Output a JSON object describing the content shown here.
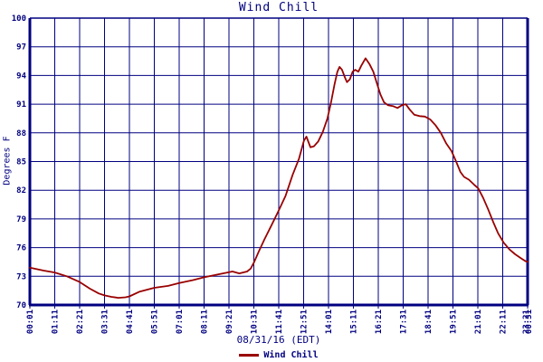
{
  "title": "Wind Chill",
  "y_axis_label": "Degrees F",
  "x_axis_label": "08/31/16 (EDT)",
  "legend": {
    "label": "Wind Chill"
  },
  "colors": {
    "grid": "#000080",
    "text": "#000080",
    "line": "#990000",
    "background": "#ffffff"
  },
  "chart_data": {
    "type": "line",
    "title": "Wind Chill",
    "xlabel": "08/31/16 (EDT)",
    "ylabel": "Degrees F",
    "ylim": [
      70,
      100
    ],
    "y_ticks": [
      100,
      97,
      94,
      91,
      88,
      85,
      82,
      79,
      76,
      73,
      70
    ],
    "x_tick_labels": [
      "00:01",
      "01:11",
      "02:21",
      "03:31",
      "04:41",
      "05:51",
      "07:01",
      "08:11",
      "09:21",
      "10:31",
      "11:41",
      "12:51",
      "14:01",
      "15:11",
      "16:21",
      "17:31",
      "18:41",
      "19:51",
      "21:01",
      "22:11"
    ],
    "x_end_overlap_labels": [
      "23:21",
      "00:31"
    ],
    "x_tick_interval_minutes": 70,
    "xlim_minutes": [
      1,
      1401
    ],
    "grid": true,
    "legend_position": "bottom-center",
    "series": [
      {
        "name": "Wind Chill",
        "color": "#990000",
        "points": [
          [
            1,
            73.9
          ],
          [
            40,
            73.6
          ],
          [
            71,
            73.4
          ],
          [
            105,
            73.0
          ],
          [
            141,
            72.4
          ],
          [
            170,
            71.7
          ],
          [
            195,
            71.2
          ],
          [
            211,
            71.0
          ],
          [
            230,
            70.85
          ],
          [
            250,
            70.75
          ],
          [
            270,
            70.8
          ],
          [
            281,
            70.9
          ],
          [
            310,
            71.4
          ],
          [
            351,
            71.8
          ],
          [
            390,
            72.0
          ],
          [
            421,
            72.3
          ],
          [
            460,
            72.6
          ],
          [
            491,
            72.9
          ],
          [
            530,
            73.2
          ],
          [
            571,
            73.5
          ],
          [
            590,
            73.3
          ],
          [
            612,
            73.5
          ],
          [
            622,
            73.8
          ],
          [
            632,
            74.5
          ],
          [
            645,
            75.6
          ],
          [
            660,
            76.8
          ],
          [
            680,
            78.3
          ],
          [
            700,
            79.8
          ],
          [
            720,
            81.4
          ],
          [
            740,
            83.6
          ],
          [
            758,
            85.3
          ],
          [
            772,
            87.2
          ],
          [
            779,
            87.6
          ],
          [
            790,
            86.5
          ],
          [
            800,
            86.6
          ],
          [
            812,
            87.1
          ],
          [
            825,
            88.1
          ],
          [
            838,
            89.5
          ],
          [
            848,
            91.2
          ],
          [
            858,
            93.1
          ],
          [
            866,
            94.4
          ],
          [
            872,
            94.9
          ],
          [
            879,
            94.6
          ],
          [
            887,
            93.8
          ],
          [
            893,
            93.3
          ],
          [
            901,
            93.6
          ],
          [
            909,
            94.4
          ],
          [
            916,
            94.6
          ],
          [
            925,
            94.4
          ],
          [
            933,
            95.0
          ],
          [
            945,
            95.8
          ],
          [
            956,
            95.2
          ],
          [
            967,
            94.4
          ],
          [
            977,
            93.2
          ],
          [
            987,
            92.0
          ],
          [
            997,
            91.2
          ],
          [
            1008,
            90.9
          ],
          [
            1022,
            90.8
          ],
          [
            1035,
            90.6
          ],
          [
            1048,
            90.9
          ],
          [
            1058,
            91.0
          ],
          [
            1070,
            90.4
          ],
          [
            1082,
            89.9
          ],
          [
            1097,
            89.75
          ],
          [
            1112,
            89.7
          ],
          [
            1127,
            89.4
          ],
          [
            1142,
            88.8
          ],
          [
            1157,
            88.0
          ],
          [
            1172,
            86.9
          ],
          [
            1187,
            86.1
          ],
          [
            1200,
            85.0
          ],
          [
            1212,
            83.9
          ],
          [
            1222,
            83.4
          ],
          [
            1236,
            83.1
          ],
          [
            1250,
            82.6
          ],
          [
            1262,
            82.2
          ],
          [
            1276,
            81.2
          ],
          [
            1290,
            80.0
          ],
          [
            1304,
            78.7
          ],
          [
            1318,
            77.5
          ],
          [
            1334,
            76.5
          ],
          [
            1350,
            75.8
          ],
          [
            1366,
            75.3
          ],
          [
            1382,
            74.9
          ],
          [
            1394,
            74.6
          ],
          [
            1401,
            74.5
          ]
        ]
      }
    ]
  }
}
